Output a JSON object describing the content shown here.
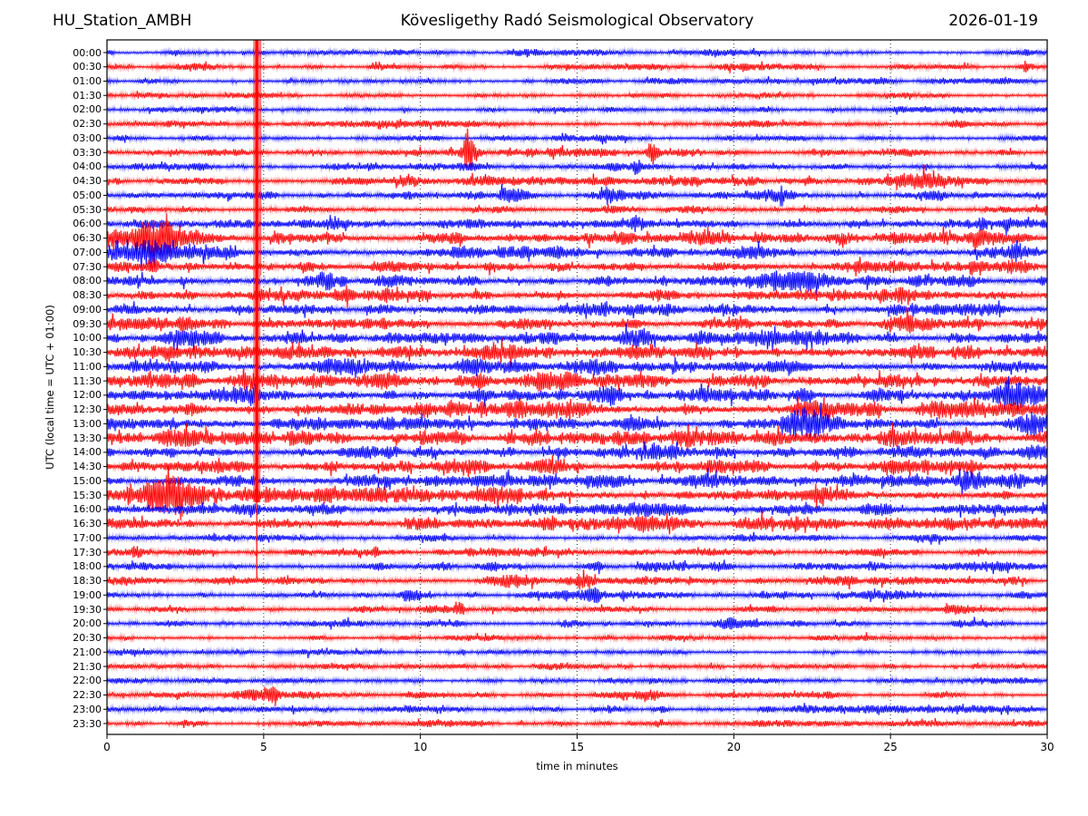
{
  "header": {
    "station": "HU_Station_AMBH",
    "observatory": "Kövesligethy Radó Seismological Observatory",
    "date": "2026-01-19"
  },
  "axes": {
    "ylabel": "UTC (local time = UTC + 01:00)",
    "xlabel": "time in minutes",
    "x_ticks": [
      0,
      5,
      10,
      15,
      20,
      25,
      30
    ],
    "x_gridlines": [
      5,
      10,
      15,
      20,
      25
    ],
    "x_range": [
      0,
      30
    ]
  },
  "colors": {
    "trace_hour": "#0000ff",
    "trace_half_hour": "#ff0000",
    "grid": "#333333",
    "axis": "#000000",
    "background": "#ffffff"
  },
  "chart_data": {
    "type": "line",
    "subtype": "helicorder-seismogram",
    "title": "HU_Station_AMBH — Kövesligethy Radó Seismological Observatory — 2026-01-19",
    "xlabel": "time in minutes",
    "ylabel": "UTC (local time = UTC + 01:00)",
    "x_range_minutes": [
      0,
      30
    ],
    "minutes_per_row": 30,
    "rows": [
      {
        "label": "00:00",
        "color": "#0000ff",
        "amp": 2.2
      },
      {
        "label": "00:30",
        "color": "#ff0000",
        "amp": 2.4
      },
      {
        "label": "01:00",
        "color": "#0000ff",
        "amp": 2.3
      },
      {
        "label": "01:30",
        "color": "#ff0000",
        "amp": 2.4
      },
      {
        "label": "02:00",
        "color": "#0000ff",
        "amp": 2.4
      },
      {
        "label": "02:30",
        "color": "#ff0000",
        "amp": 2.4
      },
      {
        "label": "03:00",
        "color": "#0000ff",
        "amp": 2.4
      },
      {
        "label": "03:30",
        "color": "#ff0000",
        "amp": 3.2
      },
      {
        "label": "04:00",
        "color": "#0000ff",
        "amp": 2.8
      },
      {
        "label": "04:30",
        "color": "#ff0000",
        "amp": 3.4
      },
      {
        "label": "05:00",
        "color": "#0000ff",
        "amp": 3.4
      },
      {
        "label": "05:30",
        "color": "#ff0000",
        "amp": 3.0
      },
      {
        "label": "06:00",
        "color": "#0000ff",
        "amp": 3.8
      },
      {
        "label": "06:30",
        "color": "#ff0000",
        "amp": 4.8
      },
      {
        "label": "07:00",
        "color": "#0000ff",
        "amp": 4.8
      },
      {
        "label": "07:30",
        "color": "#ff0000",
        "amp": 5.2
      },
      {
        "label": "08:00",
        "color": "#0000ff",
        "amp": 4.6
      },
      {
        "label": "08:30",
        "color": "#ff0000",
        "amp": 5.2
      },
      {
        "label": "09:00",
        "color": "#0000ff",
        "amp": 4.6
      },
      {
        "label": "09:30",
        "color": "#ff0000",
        "amp": 5.0
      },
      {
        "label": "10:00",
        "color": "#0000ff",
        "amp": 5.2
      },
      {
        "label": "10:30",
        "color": "#ff0000",
        "amp": 5.8
      },
      {
        "label": "11:00",
        "color": "#0000ff",
        "amp": 5.6
      },
      {
        "label": "11:30",
        "color": "#ff0000",
        "amp": 5.8
      },
      {
        "label": "12:00",
        "color": "#0000ff",
        "amp": 5.6
      },
      {
        "label": "12:30",
        "color": "#ff0000",
        "amp": 6.2
      },
      {
        "label": "13:00",
        "color": "#0000ff",
        "amp": 5.4
      },
      {
        "label": "13:30",
        "color": "#ff0000",
        "amp": 5.8
      },
      {
        "label": "14:00",
        "color": "#0000ff",
        "amp": 5.2
      },
      {
        "label": "14:30",
        "color": "#ff0000",
        "amp": 5.6
      },
      {
        "label": "15:00",
        "color": "#0000ff",
        "amp": 5.0
      },
      {
        "label": "15:30",
        "color": "#ff0000",
        "amp": 5.4
      },
      {
        "label": "16:00",
        "color": "#0000ff",
        "amp": 4.6
      },
      {
        "label": "16:30",
        "color": "#ff0000",
        "amp": 4.8
      },
      {
        "label": "17:00",
        "color": "#0000ff",
        "amp": 2.6
      },
      {
        "label": "17:30",
        "color": "#ff0000",
        "amp": 3.2
      },
      {
        "label": "18:00",
        "color": "#0000ff",
        "amp": 3.4
      },
      {
        "label": "18:30",
        "color": "#ff0000",
        "amp": 3.2
      },
      {
        "label": "19:00",
        "color": "#0000ff",
        "amp": 3.0
      },
      {
        "label": "19:30",
        "color": "#ff0000",
        "amp": 3.0
      },
      {
        "label": "20:00",
        "color": "#0000ff",
        "amp": 3.0
      },
      {
        "label": "20:30",
        "color": "#ff0000",
        "amp": 2.4
      },
      {
        "label": "21:00",
        "color": "#0000ff",
        "amp": 2.2
      },
      {
        "label": "21:30",
        "color": "#ff0000",
        "amp": 2.4
      },
      {
        "label": "22:00",
        "color": "#0000ff",
        "amp": 2.2
      },
      {
        "label": "22:30",
        "color": "#ff0000",
        "amp": 2.4
      },
      {
        "label": "23:00",
        "color": "#0000ff",
        "amp": 2.6
      },
      {
        "label": "23:30",
        "color": "#ff0000",
        "amp": 2.2
      }
    ],
    "events_format": "[row_index, center_minute, half_width_minutes, amplitude_multiplier]",
    "events": [
      [
        0,
        29.5,
        0.3,
        1.5
      ],
      [
        1,
        29.3,
        0.15,
        4.0
      ],
      [
        4,
        9.5,
        0.12,
        2.2
      ],
      [
        5,
        27.0,
        0.4,
        2.0
      ],
      [
        7,
        11.0,
        1.0,
        2.0
      ],
      [
        7,
        11.55,
        0.1,
        4.5
      ],
      [
        7,
        14.0,
        0.7,
        1.9
      ],
      [
        7,
        17.4,
        0.1,
        3.2
      ],
      [
        8,
        16.9,
        0.12,
        2.8
      ],
      [
        9,
        9.9,
        1.0,
        2.1
      ],
      [
        9,
        26.2,
        0.5,
        2.8
      ],
      [
        10,
        12.6,
        0.7,
        1.8
      ],
      [
        10,
        16.1,
        0.5,
        1.8
      ],
      [
        10,
        21.5,
        0.5,
        1.6
      ],
      [
        10,
        28.8,
        1.0,
        1.7
      ],
      [
        12,
        16.6,
        0.4,
        1.8
      ],
      [
        12,
        28.6,
        1.1,
        2.3
      ],
      [
        13,
        1.2,
        1.2,
        2.5
      ],
      [
        13,
        27.0,
        1.0,
        1.6
      ],
      [
        14,
        1.8,
        1.6,
        2.2
      ],
      [
        14,
        10.8,
        0.7,
        1.6
      ],
      [
        14,
        29.2,
        0.6,
        2.1
      ],
      [
        15,
        1.5,
        0.1,
        3.0
      ],
      [
        15,
        19.8,
        0.6,
        1.6
      ],
      [
        16,
        7.0,
        0.5,
        1.8
      ],
      [
        16,
        22.0,
        1.0,
        1.5
      ],
      [
        17,
        22.0,
        1.1,
        1.8
      ],
      [
        17,
        24.9,
        0.7,
        1.8
      ],
      [
        18,
        25.5,
        0.5,
        1.8
      ],
      [
        19,
        25.6,
        0.4,
        1.8
      ],
      [
        20,
        17.3,
        1.0,
        1.7
      ],
      [
        21,
        12.4,
        0.6,
        1.6
      ],
      [
        21,
        16.0,
        0.9,
        1.5
      ],
      [
        21,
        29.7,
        0.4,
        1.8
      ],
      [
        22,
        11.6,
        0.25,
        2.1
      ],
      [
        22,
        14.8,
        0.8,
        1.5
      ],
      [
        23,
        11.8,
        0.35,
        1.9
      ],
      [
        23,
        14.1,
        0.5,
        1.8
      ],
      [
        24,
        11.6,
        0.25,
        2.0
      ],
      [
        24,
        16.0,
        0.5,
        1.7
      ],
      [
        24,
        22.2,
        0.25,
        3.2
      ],
      [
        24,
        29.0,
        0.7,
        2.0
      ],
      [
        25,
        13.5,
        1.6,
        1.45
      ],
      [
        26,
        22.3,
        0.45,
        2.6
      ],
      [
        26,
        29.6,
        0.3,
        2.0
      ],
      [
        28,
        16.5,
        1.4,
        1.5
      ],
      [
        28,
        29.6,
        0.35,
        2.0
      ],
      [
        29,
        17.8,
        0.8,
        1.8
      ],
      [
        30,
        28.9,
        1.0,
        2.5
      ],
      [
        31,
        1.0,
        1.1,
        2.3
      ],
      [
        31,
        4.5,
        2.5,
        1.5
      ],
      [
        32,
        1.5,
        0.8,
        1.6
      ],
      [
        33,
        13.7,
        0.7,
        2.0
      ],
      [
        33,
        16.8,
        0.7,
        1.8
      ],
      [
        35,
        0.6,
        0.6,
        1.8
      ],
      [
        35,
        8.6,
        0.1,
        2.6
      ],
      [
        36,
        13.0,
        0.5,
        1.6
      ],
      [
        36,
        15.6,
        0.4,
        1.6
      ],
      [
        36,
        17.6,
        0.3,
        1.6
      ],
      [
        37,
        13.1,
        0.35,
        2.2
      ],
      [
        37,
        15.4,
        0.4,
        2.1
      ],
      [
        38,
        9.7,
        0.4,
        2.0
      ],
      [
        38,
        15.6,
        0.2,
        1.8
      ],
      [
        39,
        11.3,
        0.12,
        2.5
      ],
      [
        39,
        24.4,
        0.9,
        2.1
      ],
      [
        39,
        26.6,
        0.3,
        1.8
      ],
      [
        40,
        11.3,
        0.15,
        2.6
      ],
      [
        40,
        14.9,
        0.2,
        2.0
      ],
      [
        40,
        17.7,
        0.4,
        1.8
      ],
      [
        40,
        19.6,
        0.3,
        1.8
      ],
      [
        43,
        2.1,
        0.5,
        2.3
      ],
      [
        45,
        4.8,
        0.5,
        2.8
      ],
      [
        45,
        6.3,
        0.6,
        1.5
      ],
      [
        45,
        17.3,
        0.2,
        2.0
      ],
      [
        46,
        16.2,
        0.3,
        3.2
      ],
      [
        46,
        17.6,
        0.2,
        1.8
      ]
    ],
    "major_event": {
      "minute": 4.78,
      "row_start": 0,
      "row_end": 31,
      "tail_row_end": 37,
      "color": "#ff0000",
      "note": "large clipped red event stripe crossing rows 00:00 through ~16:00"
    }
  }
}
